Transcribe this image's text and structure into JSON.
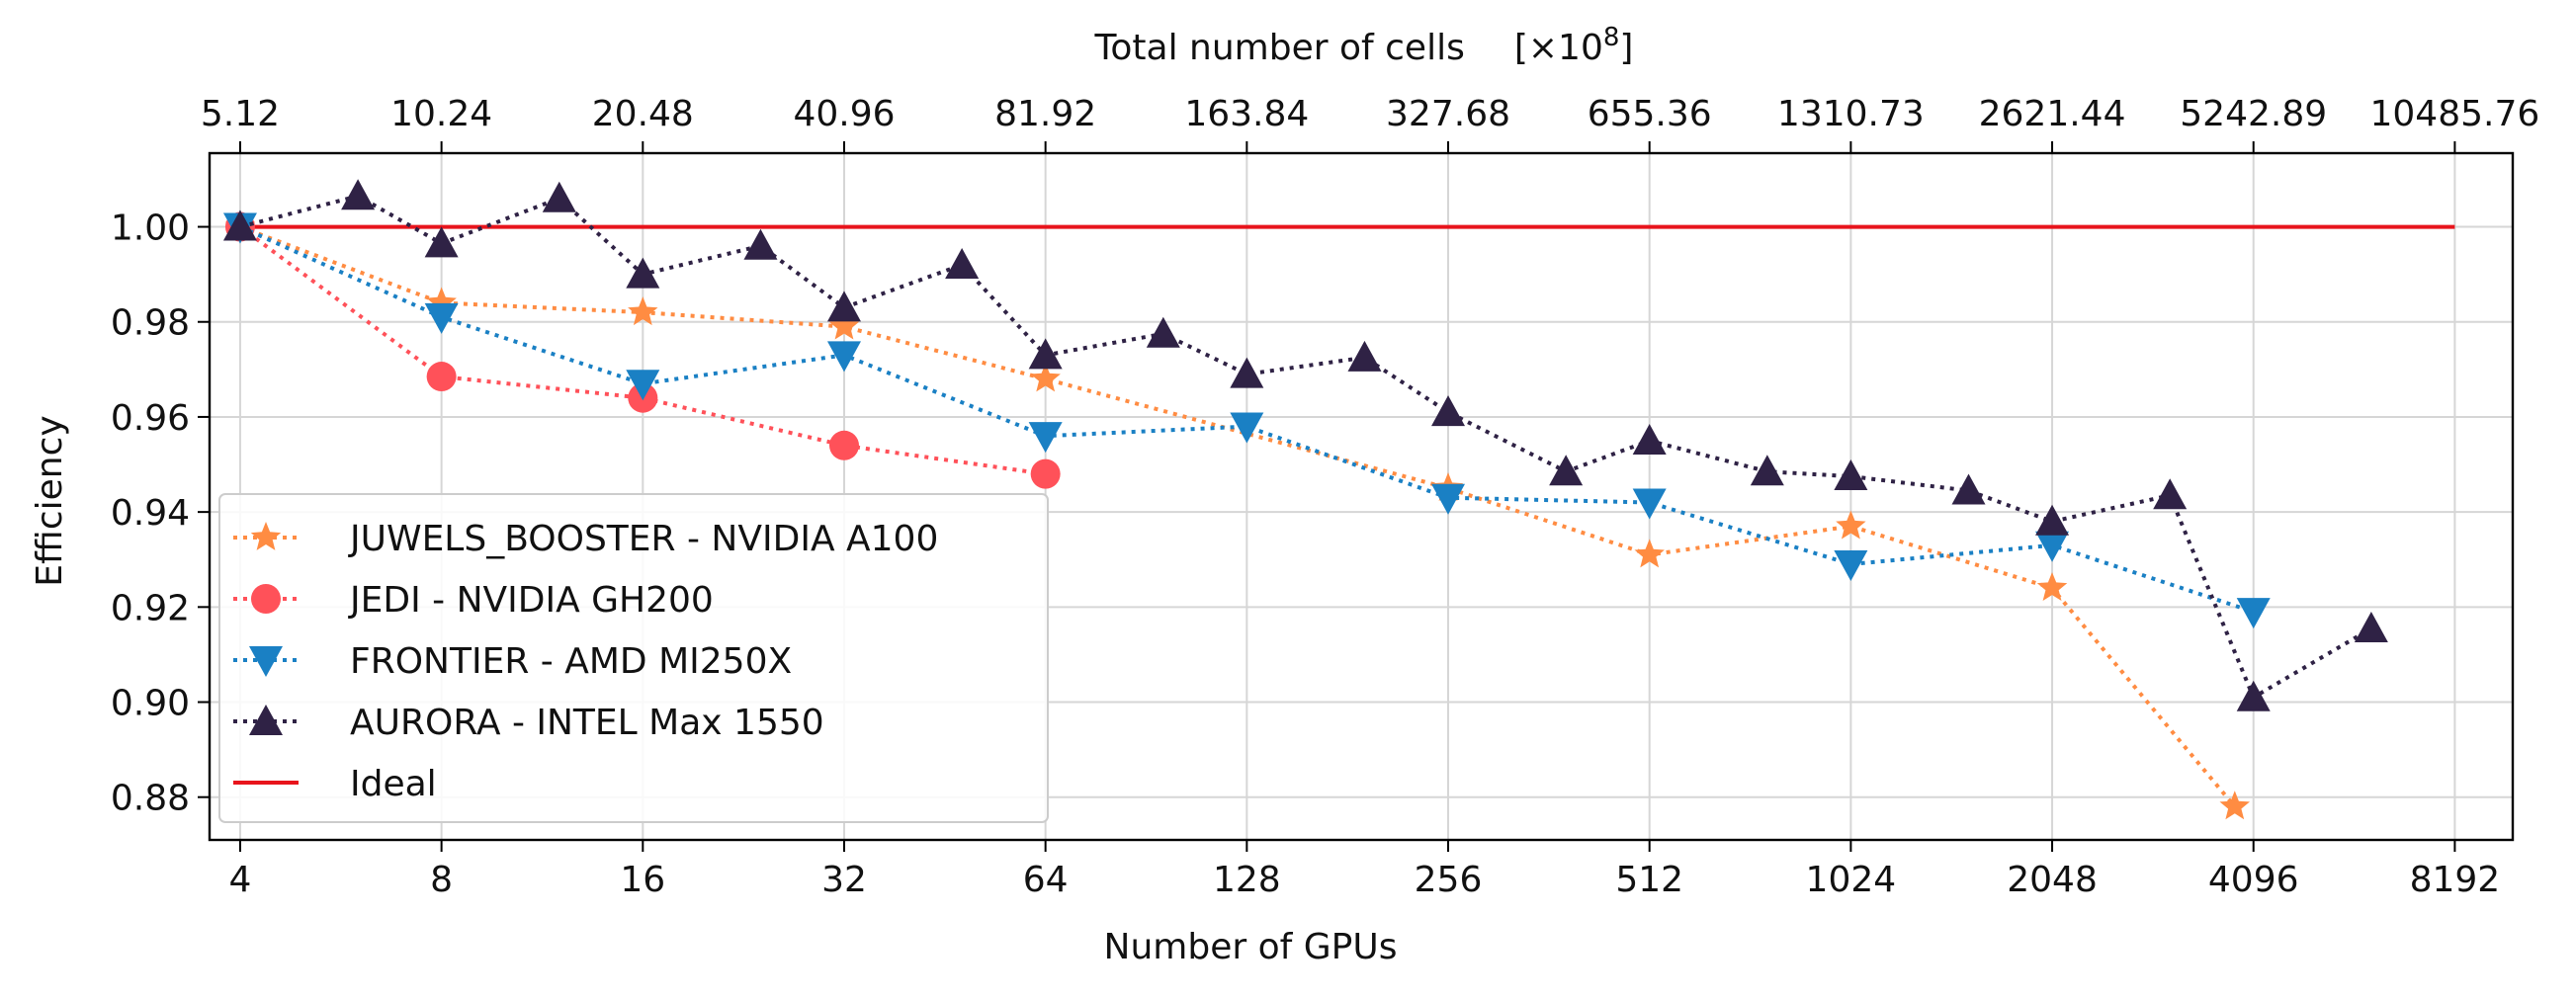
{
  "chart_data": {
    "type": "line",
    "xscale": "log2",
    "xlabel": "Number of GPUs",
    "ylabel": "Efficiency",
    "top_axis_label": "Total number of cells",
    "top_axis_unit": "[×10",
    "top_axis_unit_exp": "8",
    "top_axis_unit_close": "]",
    "xlim": [
      3.6,
      10000
    ],
    "ylim": [
      0.871,
      1.0155
    ],
    "x_ticks": [
      4,
      8,
      16,
      32,
      64,
      128,
      256,
      512,
      1024,
      2048,
      4096,
      8192
    ],
    "x_tick_labels": [
      "4",
      "8",
      "16",
      "32",
      "64",
      "128",
      "256",
      "512",
      "1024",
      "2048",
      "4096",
      "8192"
    ],
    "top_tick_labels": [
      "5.12",
      "10.24",
      "20.48",
      "40.96",
      "81.92",
      "163.84",
      "327.68",
      "655.36",
      "1310.73",
      "2621.44",
      "5242.89",
      "10485.76"
    ],
    "y_ticks": [
      0.88,
      0.9,
      0.92,
      0.94,
      0.96,
      0.98,
      1.0
    ],
    "y_tick_labels": [
      "0.88",
      "0.90",
      "0.92",
      "0.94",
      "0.96",
      "0.98",
      "1.00"
    ],
    "grid": true,
    "legend_position": "lower-left",
    "series": [
      {
        "name": "JUWELS_BOOSTER - NVIDIA A100",
        "color": "#ff8c42",
        "marker": "star",
        "line": "dotted",
        "x": [
          4,
          8,
          16,
          32,
          64,
          256,
          512,
          1024,
          2048,
          3840
        ],
        "y": [
          1.0,
          0.984,
          0.982,
          0.979,
          0.968,
          0.945,
          0.931,
          0.937,
          0.924,
          0.878
        ]
      },
      {
        "name": "JEDI - NVIDIA GH200",
        "color": "#ff5159",
        "marker": "circle",
        "line": "dotted",
        "x": [
          4,
          8,
          16,
          32,
          64
        ],
        "y": [
          1.0,
          0.9685,
          0.964,
          0.954,
          0.948
        ]
      },
      {
        "name": "FRONTIER - AMD MI250X",
        "color": "#1a80c4",
        "marker": "triangle-down",
        "line": "dotted",
        "x": [
          4,
          8,
          16,
          32,
          64,
          128,
          256,
          512,
          1024,
          2048,
          4096
        ],
        "y": [
          1.0,
          0.981,
          0.967,
          0.973,
          0.956,
          0.958,
          0.943,
          0.942,
          0.929,
          0.933,
          0.919
        ]
      },
      {
        "name": "AURORA - INTEL Max 1550",
        "color": "#2f2245",
        "marker": "triangle-up",
        "line": "dotted",
        "x": [
          4,
          6,
          8,
          12,
          16,
          24,
          32,
          48,
          64,
          96,
          128,
          192,
          256,
          384,
          512,
          768,
          1024,
          1536,
          2048,
          3072,
          4096,
          6144
        ],
        "y": [
          1.0,
          1.0065,
          0.9965,
          1.006,
          0.99,
          0.996,
          0.983,
          0.992,
          0.973,
          0.9775,
          0.969,
          0.9725,
          0.961,
          0.9485,
          0.955,
          0.9485,
          0.9475,
          0.9445,
          0.938,
          0.9435,
          0.901,
          0.9155
        ]
      },
      {
        "name": "Ideal",
        "color": "#e8141c",
        "marker": "none",
        "line": "solid",
        "x": [
          4,
          8192
        ],
        "y": [
          1.0,
          1.0
        ]
      }
    ]
  }
}
